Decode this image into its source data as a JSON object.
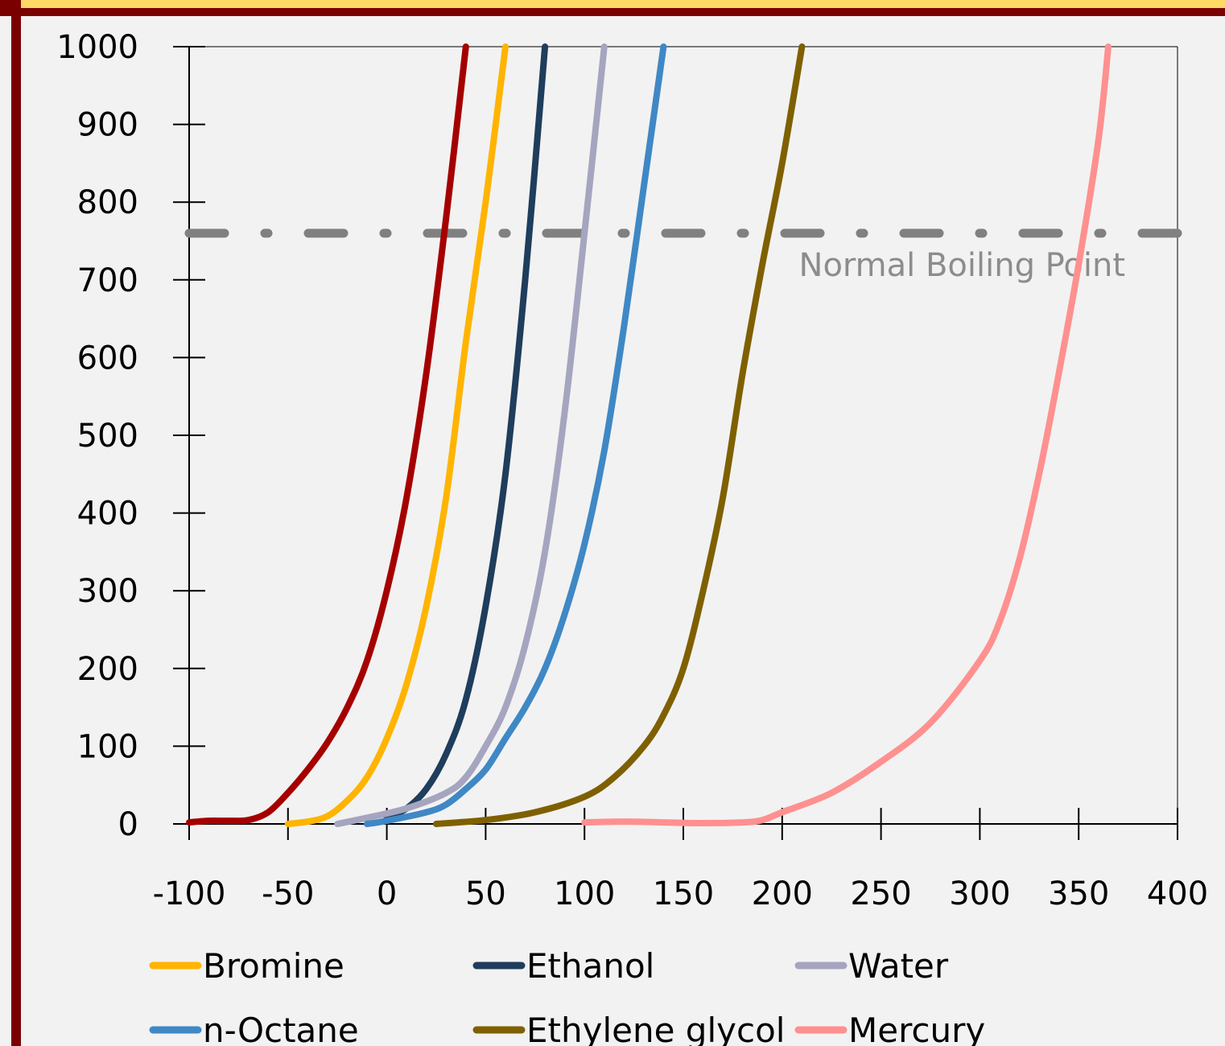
{
  "chart_data": {
    "type": "line",
    "title": "",
    "xlabel": "",
    "ylabel": "",
    "xlim": [
      -100,
      400
    ],
    "ylim": [
      0,
      1000
    ],
    "x_ticks": [
      "-100",
      "-50",
      "0",
      "50",
      "100",
      "150",
      "200",
      "250",
      "300",
      "350",
      "400"
    ],
    "y_ticks": [
      "0",
      "100",
      "200",
      "300",
      "400",
      "500",
      "600",
      "700",
      "800",
      "900",
      "1000"
    ],
    "grid": false,
    "legend_position": "bottom",
    "reference_line": {
      "y": 760,
      "label": "Normal Boiling Point",
      "color": "#808080",
      "style": "dash-dot"
    },
    "series": [
      {
        "name": "",
        "color": "#a50000",
        "points": [
          [
            -100,
            2
          ],
          [
            -90,
            4
          ],
          [
            -80,
            4
          ],
          [
            -70,
            5
          ],
          [
            -60,
            15
          ],
          [
            -50,
            40
          ],
          [
            -40,
            70
          ],
          [
            -30,
            105
          ],
          [
            -20,
            150
          ],
          [
            -10,
            210
          ],
          [
            0,
            300
          ],
          [
            10,
            420
          ],
          [
            20,
            580
          ],
          [
            30,
            780
          ],
          [
            40,
            1000
          ]
        ]
      },
      {
        "name": "Bromine",
        "color": "#ffb400",
        "points": [
          [
            -50,
            0
          ],
          [
            -40,
            3
          ],
          [
            -30,
            10
          ],
          [
            -20,
            30
          ],
          [
            -10,
            60
          ],
          [
            0,
            110
          ],
          [
            10,
            180
          ],
          [
            20,
            280
          ],
          [
            30,
            420
          ],
          [
            40,
            620
          ],
          [
            50,
            800
          ],
          [
            60,
            1000
          ]
        ]
      },
      {
        "name": "Ethanol",
        "color": "#1f3d5c",
        "points": [
          [
            0,
            8
          ],
          [
            10,
            20
          ],
          [
            20,
            45
          ],
          [
            30,
            90
          ],
          [
            40,
            160
          ],
          [
            50,
            280
          ],
          [
            60,
            450
          ],
          [
            70,
            700
          ],
          [
            80,
            1000
          ]
        ]
      },
      {
        "name": "Water",
        "color": "#a5a5c0",
        "points": [
          [
            -25,
            0
          ],
          [
            -10,
            8
          ],
          [
            10,
            20
          ],
          [
            30,
            40
          ],
          [
            40,
            60
          ],
          [
            50,
            100
          ],
          [
            60,
            150
          ],
          [
            70,
            230
          ],
          [
            80,
            350
          ],
          [
            90,
            530
          ],
          [
            100,
            760
          ],
          [
            110,
            1000
          ]
        ]
      },
      {
        "name": "n-Octane",
        "color": "#3f88c5",
        "points": [
          [
            -10,
            0
          ],
          [
            0,
            4
          ],
          [
            20,
            15
          ],
          [
            30,
            25
          ],
          [
            40,
            45
          ],
          [
            50,
            70
          ],
          [
            60,
            110
          ],
          [
            70,
            150
          ],
          [
            80,
            200
          ],
          [
            90,
            270
          ],
          [
            100,
            360
          ],
          [
            110,
            480
          ],
          [
            120,
            640
          ],
          [
            130,
            820
          ],
          [
            140,
            1000
          ]
        ]
      },
      {
        "name": "Ethylene glycol",
        "color": "#7f6000",
        "points": [
          [
            25,
            0
          ],
          [
            50,
            5
          ],
          [
            75,
            15
          ],
          [
            100,
            35
          ],
          [
            115,
            60
          ],
          [
            130,
            100
          ],
          [
            140,
            140
          ],
          [
            150,
            200
          ],
          [
            160,
            300
          ],
          [
            170,
            420
          ],
          [
            180,
            580
          ],
          [
            190,
            720
          ],
          [
            200,
            850
          ],
          [
            210,
            1000
          ]
        ]
      },
      {
        "name": "Mercury",
        "color": "#ff9090",
        "points": [
          [
            100,
            2
          ],
          [
            120,
            3
          ],
          [
            140,
            2
          ],
          [
            160,
            1
          ],
          [
            180,
            2
          ],
          [
            190,
            5
          ],
          [
            200,
            15
          ],
          [
            225,
            40
          ],
          [
            250,
            80
          ],
          [
            275,
            130
          ],
          [
            300,
            210
          ],
          [
            310,
            260
          ],
          [
            320,
            340
          ],
          [
            330,
            450
          ],
          [
            340,
            580
          ],
          [
            350,
            720
          ],
          [
            360,
            880
          ],
          [
            365,
            1000
          ]
        ]
      }
    ]
  }
}
